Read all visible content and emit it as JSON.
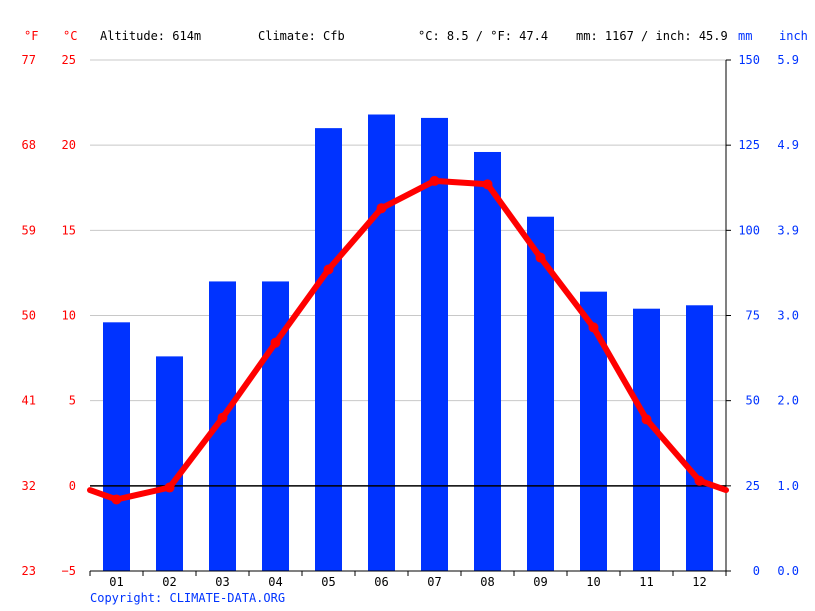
{
  "header": {
    "f_unit": "°F",
    "c_unit": "°C",
    "altitude": "Altitude: 614m",
    "climate": "Climate: Cfb",
    "temp_summary": "°C: 8.5 / °F: 47.4",
    "precip_summary": "mm: 1167 / inch: 45.9",
    "mm_unit": "mm",
    "inch_unit": "inch"
  },
  "copyright": "Copyright: CLIMATE-DATA.ORG",
  "colors": {
    "temperature": "#ff0000",
    "precipitation": "#0033ff",
    "grid": "#c8c8c8",
    "zero_line": "#000000"
  },
  "chart_data": {
    "type": "bar",
    "categories": [
      "01",
      "02",
      "03",
      "04",
      "05",
      "06",
      "07",
      "08",
      "09",
      "10",
      "11",
      "12"
    ],
    "series": [
      {
        "kind": "bar",
        "axis": "right",
        "values": [
          73,
          63,
          85,
          85,
          130,
          134,
          133,
          123,
          104,
          82,
          77,
          78
        ]
      },
      {
        "kind": "line",
        "axis": "left",
        "values": [
          -0.8,
          -0.1,
          4.0,
          8.4,
          12.7,
          16.3,
          17.9,
          17.7,
          13.4,
          9.3,
          3.9,
          0.3
        ]
      }
    ],
    "left_axis": {
      "ylim": [
        -5,
        25
      ],
      "ticks_c": [
        "25",
        "20",
        "15",
        "10",
        "5",
        "0",
        "−5"
      ],
      "ticks_f": [
        "77",
        "68",
        "59",
        "50",
        "41",
        "32",
        "23"
      ]
    },
    "right_axis": {
      "ylim": [
        0,
        150
      ],
      "ticks_mm": [
        "150",
        "125",
        "100",
        "75",
        "50",
        "25",
        "0"
      ],
      "ticks_inch": [
        "5.9",
        "4.9",
        "3.9",
        "3.0",
        "2.0",
        "1.0",
        "0.0"
      ]
    },
    "grid": true
  }
}
